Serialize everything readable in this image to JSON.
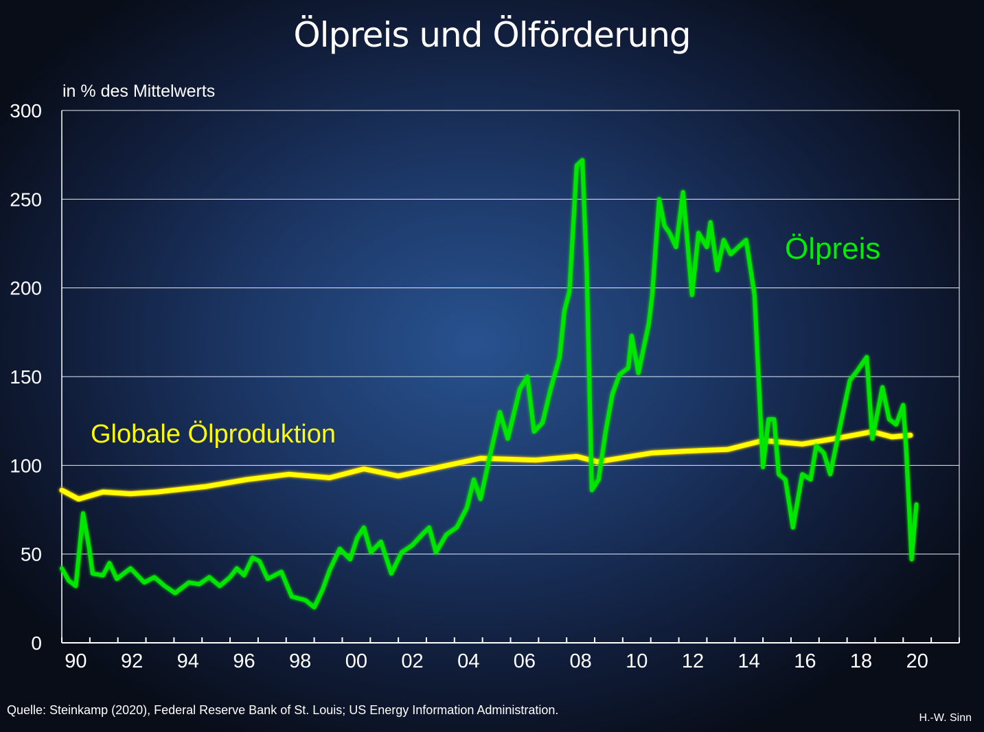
{
  "title": "Ölpreis und Ölförderung",
  "source": "Quelle: Steinkamp  (2020), Federal Reserve Bank of St. Louis; US Energy Information Administration.",
  "author": "H.-W. Sinn",
  "chart_data": {
    "type": "line",
    "title": "Ölpreis und Ölförderung",
    "ylabel": "in % des Mittelwerts",
    "xlabel": "",
    "xlim": [
      1990,
      2022
    ],
    "ylim": [
      0,
      300
    ],
    "yticks": [
      0,
      50,
      100,
      150,
      200,
      250,
      300
    ],
    "xtick_labels": [
      "90",
      "92",
      "94",
      "96",
      "98",
      "00",
      "02",
      "04",
      "06",
      "08",
      "10",
      "12",
      "14",
      "16",
      "18",
      "20"
    ],
    "grid": true,
    "series": [
      {
        "name": "Ölpreis",
        "color": "#00e600",
        "x": [
          1990.0,
          1990.25,
          1990.5,
          1990.76,
          1990.98,
          1991.1,
          1991.47,
          1991.7,
          1991.96,
          1992.45,
          1992.94,
          1993.3,
          1993.67,
          1994.04,
          1994.53,
          1994.9,
          1995.26,
          1995.63,
          1996.0,
          1996.24,
          1996.5,
          1996.8,
          1997.05,
          1997.34,
          1997.83,
          1998.2,
          1998.69,
          1999.0,
          1999.3,
          1999.55,
          1999.91,
          2000.28,
          2000.53,
          2000.77,
          2001.02,
          2001.38,
          2001.75,
          2002.12,
          2002.5,
          2002.85,
          2003.1,
          2003.34,
          2003.71,
          2004.08,
          2004.44,
          2004.69,
          2004.93,
          2005.23,
          2005.62,
          2005.9,
          2006.1,
          2006.33,
          2006.6,
          2006.84,
          2007.14,
          2007.43,
          2007.75,
          2007.92,
          2008.1,
          2008.36,
          2008.56,
          2008.72,
          2008.9,
          2009.14,
          2009.39,
          2009.63,
          2009.88,
          2010.2,
          2010.32,
          2010.56,
          2010.93,
          2011.05,
          2011.3,
          2011.49,
          2011.67,
          2011.9,
          2012.15,
          2012.47,
          2012.7,
          2013.0,
          2013.13,
          2013.37,
          2013.6,
          2013.85,
          2014.4,
          2014.7,
          2015.0,
          2015.2,
          2015.4,
          2015.56,
          2015.8,
          2016.07,
          2016.4,
          2016.7,
          2016.9,
          2017.17,
          2017.4,
          2017.8,
          2018.1,
          2018.35,
          2018.7,
          2018.9,
          2019.26,
          2019.5,
          2019.75,
          2020.0,
          2020.1,
          2020.3,
          2020.47
        ],
        "y": [
          42,
          35,
          32,
          73,
          53,
          39,
          38,
          45,
          36,
          42,
          34,
          37,
          32,
          28,
          34,
          33,
          37,
          32,
          37,
          42,
          38,
          48,
          46,
          36,
          40,
          26,
          24,
          20,
          30,
          41,
          53,
          47,
          59,
          65,
          51,
          57,
          39,
          51,
          55,
          61,
          65,
          51,
          61,
          65,
          76,
          92,
          81,
          103,
          130,
          115,
          128,
          143,
          150,
          119,
          124,
          143,
          161,
          187,
          198,
          269,
          272,
          208,
          86,
          92,
          119,
          140,
          151,
          155,
          173,
          152,
          180,
          196,
          250,
          235,
          231,
          223,
          254,
          196,
          231,
          223,
          237,
          210,
          227,
          219,
          227,
          196,
          99,
          126,
          126,
          95,
          92,
          65,
          95,
          92,
          111,
          107,
          95,
          126,
          148,
          153,
          161,
          115,
          144,
          126,
          123,
          134,
          111,
          47,
          78
        ]
      },
      {
        "name": "Globale Ölproduktion",
        "color": "#ffff00",
        "x": [
          1990.0,
          1990.6,
          1991.47,
          1992.45,
          1993.4,
          1995.1,
          1996.6,
          1998.1,
          1999.55,
          2000.77,
          2002.0,
          2003.45,
          2004.93,
          2006.9,
          2008.36,
          2009.1,
          2011.05,
          2012.27,
          2013.75,
          2015.0,
          2016.4,
          2017.9,
          2018.9,
          2019.6,
          2020.26
        ],
        "y": [
          86,
          81,
          85,
          84,
          85,
          88,
          92,
          95,
          93,
          98,
          94,
          99,
          104,
          103,
          105,
          102,
          107,
          108,
          109,
          114,
          112,
          116,
          119,
          116,
          117
        ]
      }
    ]
  }
}
